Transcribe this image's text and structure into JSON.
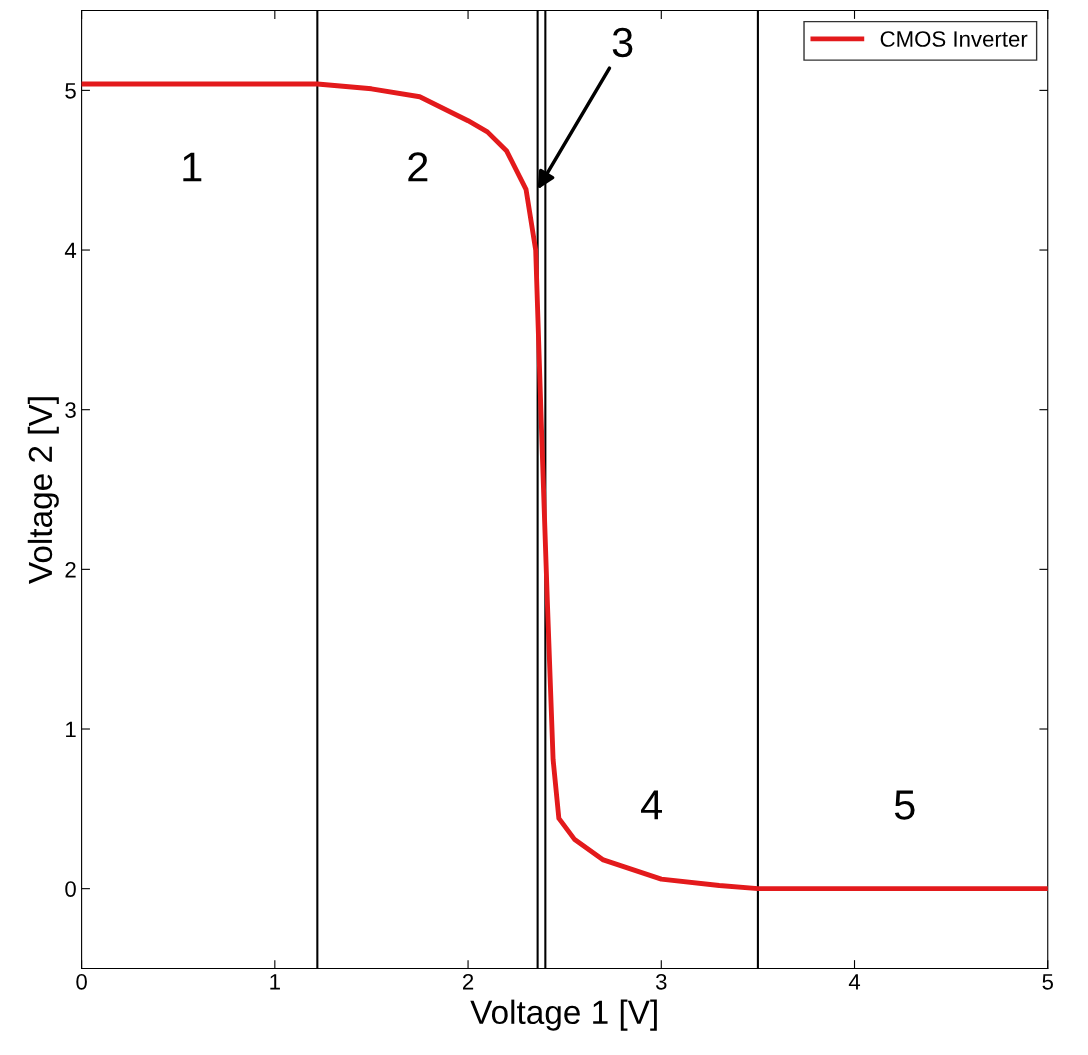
{
  "chart_data": {
    "type": "line",
    "xlabel": "Voltage 1 [V]",
    "ylabel": "Voltage 2 [V]",
    "x": [
      0,
      0.5,
      1.0,
      1.22,
      1.5,
      1.75,
      2.0,
      2.1,
      2.2,
      2.3,
      2.35,
      2.38,
      2.41,
      2.44,
      2.47,
      2.55,
      2.7,
      3.0,
      3.3,
      3.5,
      4.0,
      4.5,
      5.0
    ],
    "series": [
      {
        "name": "CMOS Inverter",
        "color": "#e31a1c",
        "values": [
          5.04,
          5.04,
          5.04,
          5.04,
          5.01,
          4.96,
          4.81,
          4.74,
          4.62,
          4.38,
          4.0,
          2.88,
          1.81,
          0.81,
          0.44,
          0.31,
          0.18,
          0.06,
          0.02,
          0.0,
          0.0,
          0.0,
          0.0
        ]
      }
    ],
    "xlim": [
      0,
      5
    ],
    "ylim": [
      -0.5,
      5.5
    ],
    "xticks": [
      0,
      1,
      2,
      3,
      4,
      5
    ],
    "yticks": [
      0,
      1,
      2,
      3,
      4,
      5
    ],
    "ref_lines": [
      {
        "axis": "x",
        "value": 1.22,
        "color": "#000000"
      },
      {
        "axis": "x",
        "value": 2.36,
        "color": "#000000"
      },
      {
        "axis": "x",
        "value": 2.4,
        "color": "#000000"
      },
      {
        "axis": "x",
        "value": 3.5,
        "color": "#000000"
      }
    ],
    "annotations": [
      "1",
      "2",
      {
        "text": "3",
        "x": 2.36,
        "y": 4.38
      },
      "4",
      "5"
    ],
    "legend": "top right",
    "grid": false,
    "marker": "none",
    "line_style": "solid"
  }
}
